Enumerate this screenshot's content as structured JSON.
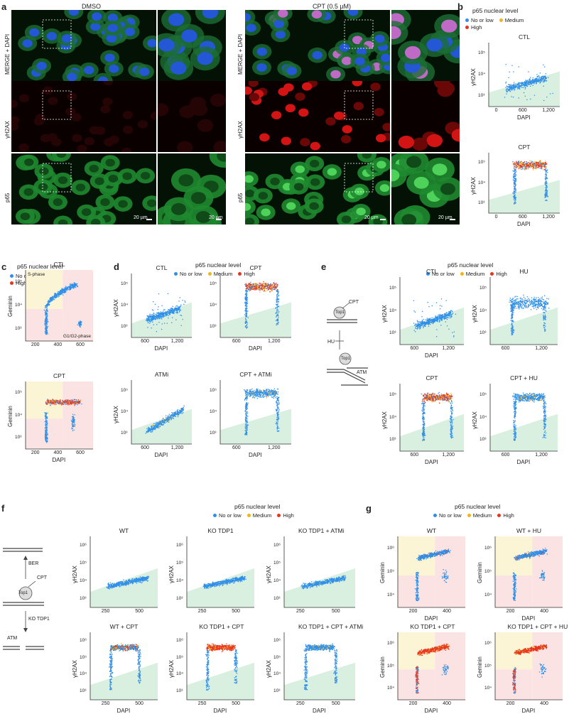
{
  "panels": {
    "a": "a",
    "b": "b",
    "c": "c",
    "d": "d",
    "e": "e",
    "f": "f",
    "g": "g"
  },
  "micro": {
    "cond_dmso": "DMSO",
    "cond_cpt": "CPT (0.5 µM)",
    "row_merge": "MERGE + DAPI",
    "row_h2ax": "γH2AX",
    "row_p65": "p65",
    "scale": "20 µm"
  },
  "legend": {
    "title": "p65 nuclear level",
    "low": "No or low",
    "med": "Medium",
    "high": "High"
  },
  "colors": {
    "low": "#2f8fe8",
    "med": "#f2b418",
    "high": "#e8341c",
    "shade_green": "#d9f0e0",
    "shade_yellow": "#fbf5d6",
    "shade_pink": "#fbe3e3"
  },
  "schematic": {
    "cpt": "CPT",
    "top1": "Top1",
    "hu": "HU",
    "atm": "ATM",
    "ber": "BER",
    "ko_tdp1": "KO TDP1"
  },
  "chart_data": [
    {
      "panel": "b",
      "type": "scatter",
      "title": "CTL",
      "xlabel": "DAPI",
      "ylabel": "γH2AX",
      "xticks": [
        "0",
        "600",
        "1,200"
      ],
      "yticks": [
        "10³",
        "10⁴",
        "10⁵"
      ],
      "xlim": [
        0,
        1200
      ],
      "scale": "log-y"
    },
    {
      "panel": "b",
      "type": "scatter",
      "title": "CPT",
      "xlabel": "DAPI",
      "ylabel": "γH2AX",
      "xticks": [
        "0",
        "600",
        "1,200"
      ],
      "yticks": [
        "10³",
        "10⁴",
        "10⁵"
      ],
      "xlim": [
        0,
        1200
      ],
      "scale": "log-y"
    },
    {
      "panel": "c",
      "type": "scatter",
      "title": "CTL",
      "xlabel": "",
      "ylabel": "Geminin",
      "xticks": [
        "200",
        "400",
        "600"
      ],
      "yticks": [
        "10³",
        "10⁴",
        "10⁵"
      ],
      "annotations": [
        "S-phase",
        "G1/G2-phase"
      ]
    },
    {
      "panel": "c",
      "type": "scatter",
      "title": "CPT",
      "xlabel": "DAPI",
      "ylabel": "Geminin",
      "xticks": [
        "200",
        "400",
        "600"
      ],
      "yticks": [
        "10³",
        "10⁴",
        "10⁵"
      ]
    },
    {
      "panel": "d",
      "type": "scatter",
      "title": "CTL",
      "xlabel": "DAPI",
      "ylabel": "γH2AX",
      "xticks": [
        "600",
        "1,200"
      ],
      "yticks": [
        "10³",
        "10⁴",
        "10⁵"
      ]
    },
    {
      "panel": "d",
      "type": "scatter",
      "title": "CPT",
      "xlabel": "DAPI",
      "ylabel": "",
      "xticks": [
        "600",
        "1,200"
      ],
      "yticks": [
        "10³",
        "10⁴",
        "10⁵"
      ]
    },
    {
      "panel": "d",
      "type": "scatter",
      "title": "ATMi",
      "xlabel": "DAPI",
      "ylabel": "γH2AX",
      "xticks": [
        "600",
        "1,200"
      ],
      "yticks": [
        "10³",
        "10⁴",
        "10⁵"
      ]
    },
    {
      "panel": "d",
      "type": "scatter",
      "title": "CPT + ATMi",
      "xlabel": "DAPI",
      "ylabel": "",
      "xticks": [
        "600",
        "1,200"
      ],
      "yticks": [
        "10³",
        "10⁴",
        "10⁵"
      ]
    },
    {
      "panel": "e",
      "type": "scatter",
      "title": "CTL",
      "xlabel": "DAPI",
      "ylabel": "γH2AX",
      "xticks": [
        "600",
        "1,200"
      ],
      "yticks": [
        "10³",
        "10⁴",
        "10⁵"
      ]
    },
    {
      "panel": "e",
      "type": "scatter",
      "title": "HU",
      "xlabel": "",
      "ylabel": "γH2AX",
      "xticks": [
        "600",
        "1,200"
      ],
      "yticks": [
        "10³",
        "10⁴",
        "10⁵"
      ]
    },
    {
      "panel": "e",
      "type": "scatter",
      "title": "CPT",
      "xlabel": "DAPI",
      "ylabel": "γH2AX",
      "xticks": [
        "600",
        "1,200"
      ],
      "yticks": [
        "10³",
        "10⁴",
        "10⁵"
      ]
    },
    {
      "panel": "e",
      "type": "scatter",
      "title": "CPT + HU",
      "xlabel": "DAPI",
      "ylabel": "γH2AX",
      "xticks": [
        "600",
        "1,200"
      ],
      "yticks": [
        "10³",
        "10⁴",
        "10⁵"
      ]
    },
    {
      "panel": "f",
      "type": "scatter",
      "title": "WT",
      "xlabel": "",
      "ylabel": "γH2AX",
      "xticks": [
        "250",
        "500"
      ],
      "yticks": [
        "10³",
        "10⁴",
        "10⁵",
        "10⁶"
      ]
    },
    {
      "panel": "f",
      "type": "scatter",
      "title": "KO TDP1",
      "xlabel": "",
      "ylabel": "γH2AX",
      "xticks": [
        "250",
        "500"
      ],
      "yticks": [
        "10³",
        "10⁴",
        "10⁵",
        "10⁶"
      ]
    },
    {
      "panel": "f",
      "type": "scatter",
      "title": "KO TDP1 + ATMi",
      "xlabel": "",
      "ylabel": "γH2AX",
      "xticks": [
        "250",
        "500"
      ],
      "yticks": [
        "10³",
        "10⁴",
        "10⁵",
        "10⁶"
      ]
    },
    {
      "panel": "f",
      "type": "scatter",
      "title": "WT + CPT",
      "xlabel": "DAPI",
      "ylabel": "γH2AX",
      "xticks": [
        "250",
        "500"
      ],
      "yticks": [
        "10³",
        "10⁴",
        "10⁵",
        "10⁶"
      ]
    },
    {
      "panel": "f",
      "type": "scatter",
      "title": "KO TDP1 + CPT",
      "xlabel": "DAPI",
      "ylabel": "γH2AX",
      "xticks": [
        "250",
        "500"
      ],
      "yticks": [
        "10³",
        "10⁴",
        "10⁵",
        "10⁶"
      ]
    },
    {
      "panel": "f",
      "type": "scatter",
      "title": "KO TDP1 + CPT + ATMi",
      "xlabel": "DAPI",
      "ylabel": "γH2AX",
      "xticks": [
        "250",
        "500"
      ],
      "yticks": [
        "10³",
        "10⁴",
        "10⁵",
        "10⁶"
      ]
    },
    {
      "panel": "g",
      "type": "scatter",
      "title": "WT",
      "xlabel": "DAPI",
      "ylabel": "Geminin",
      "xticks": [
        "200",
        "400"
      ],
      "yticks": [
        "10⁴",
        "10⁵",
        "10⁶"
      ]
    },
    {
      "panel": "g",
      "type": "scatter",
      "title": "WT + HU",
      "xlabel": "DAPI",
      "ylabel": "Geminin",
      "xticks": [
        "200",
        "400"
      ],
      "yticks": [
        "10⁴",
        "10⁵",
        "10⁶"
      ]
    },
    {
      "panel": "g",
      "type": "scatter",
      "title": "KO TDP1 + CPT",
      "xlabel": "DAPI",
      "ylabel": "Geminin",
      "xticks": [
        "200",
        "400"
      ],
      "yticks": [
        "10⁴",
        "10⁵",
        "10⁶"
      ]
    },
    {
      "panel": "g",
      "type": "scatter",
      "title": "KO TDP1 + CPT + HU",
      "xlabel": "DAPI",
      "ylabel": "Geminin",
      "xticks": [
        "200",
        "400"
      ],
      "yticks": [
        "10⁴",
        "10⁵",
        "10⁶"
      ]
    }
  ]
}
